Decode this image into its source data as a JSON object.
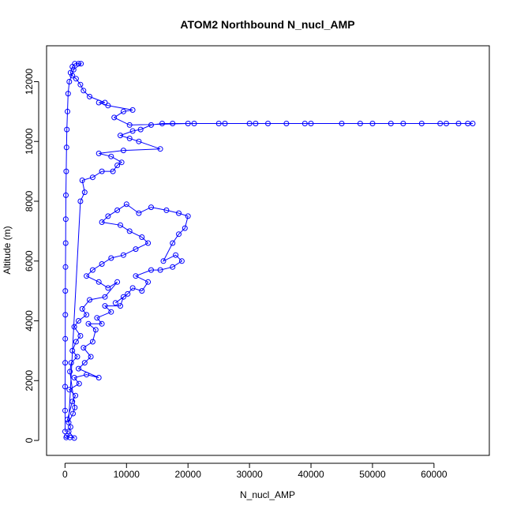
{
  "chart_data": {
    "type": "scatter",
    "title": "ATOM2 Northbound N_nucl_AMP",
    "xlabel": "N_nucl_AMP",
    "ylabel": "Altitude (m)",
    "xlim": [
      -3000,
      69000
    ],
    "ylim": [
      -500,
      13200
    ],
    "xticks": [
      0,
      10000,
      20000,
      30000,
      40000,
      50000,
      60000
    ],
    "yticks": [
      0,
      2000,
      4000,
      6000,
      8000,
      10000,
      12000
    ],
    "grid": false,
    "legend": "none",
    "marker": "open-circle",
    "connect_points": true,
    "series_color": "#0000ff",
    "series": [
      {
        "points": [
          [
            200,
            100
          ],
          [
            300,
            150
          ],
          [
            800,
            100
          ],
          [
            1500,
            80
          ],
          [
            600,
            300
          ],
          [
            900,
            450
          ],
          [
            400,
            700
          ],
          [
            1200,
            1300
          ],
          [
            1700,
            1500
          ],
          [
            700,
            1700
          ],
          [
            2300,
            1900
          ],
          [
            1500,
            2100
          ],
          [
            3500,
            2200
          ],
          [
            5500,
            2100
          ],
          [
            2200,
            2400
          ],
          [
            3200,
            2600
          ],
          [
            4200,
            2800
          ],
          [
            3000,
            3100
          ],
          [
            4500,
            3300
          ],
          [
            5000,
            3700
          ],
          [
            3800,
            3900
          ],
          [
            6000,
            3900
          ],
          [
            5200,
            4100
          ],
          [
            7500,
            4300
          ],
          [
            6500,
            4500
          ],
          [
            9000,
            4500
          ],
          [
            9500,
            4800
          ],
          [
            8200,
            4600
          ],
          [
            10200,
            4900
          ],
          [
            11000,
            5100
          ],
          [
            12500,
            5000
          ],
          [
            13500,
            5300
          ],
          [
            11500,
            5500
          ],
          [
            14000,
            5700
          ],
          [
            15500,
            5700
          ],
          [
            17500,
            5800
          ],
          [
            19000,
            6000
          ],
          [
            18000,
            6200
          ],
          [
            16000,
            6000
          ],
          [
            17500,
            6600
          ],
          [
            18500,
            6900
          ],
          [
            19500,
            7100
          ],
          [
            20000,
            7500
          ],
          [
            18500,
            7600
          ],
          [
            16500,
            7700
          ],
          [
            14000,
            7800
          ],
          [
            12000,
            7600
          ],
          [
            10000,
            7900
          ],
          [
            8500,
            7700
          ],
          [
            7000,
            7500
          ],
          [
            6000,
            7300
          ],
          [
            9000,
            7200
          ],
          [
            10500,
            7000
          ],
          [
            12500,
            6800
          ],
          [
            13500,
            6600
          ],
          [
            11500,
            6400
          ],
          [
            9500,
            6200
          ],
          [
            7500,
            6100
          ],
          [
            6000,
            5900
          ],
          [
            4500,
            5700
          ],
          [
            3500,
            5500
          ],
          [
            5500,
            5300
          ],
          [
            7000,
            5100
          ],
          [
            8500,
            5300
          ],
          [
            6500,
            4800
          ],
          [
            4000,
            4700
          ],
          [
            2800,
            4400
          ],
          [
            3500,
            4200
          ],
          [
            2200,
            4000
          ],
          [
            1500,
            3800
          ],
          [
            2500,
            3500
          ],
          [
            1800,
            3300
          ],
          [
            1200,
            3000
          ],
          [
            2000,
            2800
          ],
          [
            1000,
            2600
          ],
          [
            800,
            2300
          ],
          [
            1600,
            1100
          ],
          [
            1300,
            900
          ],
          [
            600,
            600
          ],
          [
            2500,
            8000
          ],
          [
            3200,
            8300
          ],
          [
            2800,
            8700
          ],
          [
            4500,
            8800
          ],
          [
            6000,
            9000
          ],
          [
            7800,
            9000
          ],
          [
            8500,
            9200
          ],
          [
            9200,
            9300
          ],
          [
            7500,
            9500
          ],
          [
            5500,
            9600
          ],
          [
            9500,
            9700
          ],
          [
            15500,
            9750
          ],
          [
            12000,
            10000
          ],
          [
            10500,
            10100
          ],
          [
            9000,
            10200
          ],
          [
            11000,
            10350
          ],
          [
            12300,
            10400
          ],
          [
            14000,
            10550
          ],
          [
            15800,
            10600
          ],
          [
            17500,
            10600
          ],
          [
            21000,
            10600
          ],
          [
            25000,
            10600
          ],
          [
            26000,
            10600
          ],
          [
            31000,
            10600
          ],
          [
            33000,
            10600
          ],
          [
            36000,
            10600
          ],
          [
            39000,
            10600
          ],
          [
            45000,
            10600
          ],
          [
            50000,
            10600
          ],
          [
            53000,
            10600
          ],
          [
            55000,
            10600
          ],
          [
            58000,
            10600
          ],
          [
            61000,
            10600
          ],
          [
            64000,
            10600
          ],
          [
            65500,
            10600
          ],
          [
            66300,
            10600
          ],
          [
            62000,
            10600
          ],
          [
            48000,
            10600
          ],
          [
            40000,
            10600
          ],
          [
            30000,
            10600
          ],
          [
            20000,
            10600
          ],
          [
            10500,
            10550
          ],
          [
            8000,
            10800
          ],
          [
            9500,
            11000
          ],
          [
            11000,
            11050
          ],
          [
            7000,
            11200
          ],
          [
            5500,
            11300
          ],
          [
            6500,
            11300
          ],
          [
            4000,
            11500
          ],
          [
            3000,
            11700
          ],
          [
            2500,
            11900
          ],
          [
            1800,
            12100
          ],
          [
            1200,
            12200
          ],
          [
            900,
            12300
          ],
          [
            1200,
            12500
          ],
          [
            1600,
            12600
          ],
          [
            2200,
            12600
          ],
          [
            2600,
            12600
          ],
          [
            1400,
            12400
          ],
          [
            700,
            12000
          ],
          [
            500,
            11600
          ],
          [
            400,
            11000
          ],
          [
            300,
            10400
          ],
          [
            250,
            9800
          ],
          [
            200,
            9000
          ],
          [
            150,
            8200
          ],
          [
            120,
            7400
          ],
          [
            100,
            6600
          ],
          [
            80,
            5800
          ],
          [
            60,
            5000
          ],
          [
            50,
            4200
          ],
          [
            40,
            3400
          ],
          [
            30,
            2600
          ],
          [
            20,
            1800
          ],
          [
            15,
            1000
          ],
          [
            10,
            300
          ]
        ]
      }
    ]
  }
}
